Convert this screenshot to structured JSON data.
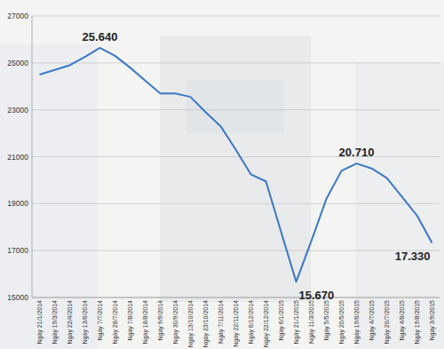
{
  "chart_data": {
    "type": "line",
    "categories": [
      "Ngày 21/1/2014",
      "Ngày 19/3/2014",
      "Ngày 22/4/2014",
      "Ngày 13/6/2014",
      "Ngày 7/7/2014",
      "Ngày 28/7/2014",
      "Ngày 7/8/2014",
      "Ngày 18/8/2014",
      "Ngày 9/9/2014",
      "Ngày 30/9/2014",
      "Ngày 13/10/2014",
      "Ngày 23/10/2014",
      "Ngày 7/11/2014",
      "Ngày 22/11/2014",
      "Ngày 6/12/2014",
      "Ngày 22/12/2014",
      "Ngày 6/1/2015",
      "Ngày 21/1/2015",
      "Ngày 11/3/2015",
      "Ngày 5/5/2015",
      "Ngày 20/5/2015",
      "Ngày 19/6/2015",
      "Ngày 4/7/2015",
      "Ngày 20/7/2015",
      "Ngày 4/8/2015",
      "Ngày 19/8/2015",
      "Ngày 3/9/2015"
    ],
    "values": [
      24500,
      24700,
      24900,
      25250,
      25640,
      25300,
      24800,
      24250,
      23700,
      23700,
      23550,
      22900,
      22300,
      21300,
      20250,
      19950,
      17800,
      15670,
      17400,
      19200,
      20400,
      20710,
      20500,
      20100,
      19300,
      18500,
      17330
    ],
    "value_labels": [
      null,
      null,
      null,
      null,
      "25.640",
      null,
      null,
      null,
      null,
      null,
      null,
      null,
      null,
      null,
      null,
      null,
      null,
      "15.670",
      null,
      null,
      null,
      "20.710",
      null,
      null,
      null,
      null,
      "17.330"
    ],
    "color": "#3b78c4",
    "ylim": [
      15000,
      27000
    ],
    "yticks": [
      15000,
      17000,
      19000,
      21000,
      23000,
      25000,
      27000
    ],
    "grid": true
  }
}
